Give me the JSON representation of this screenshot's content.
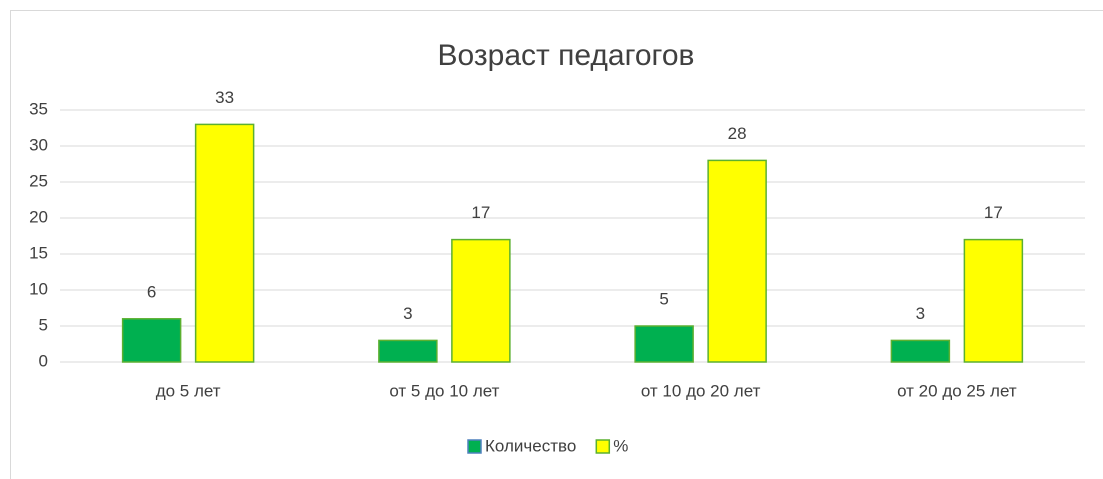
{
  "chart_data": {
    "type": "bar",
    "title": "Возраст педагогов",
    "categories": [
      "до 5 лет",
      "от 5 до 10 лет",
      "от 10 до 20  лет",
      "от 20 до 25 лет"
    ],
    "series": [
      {
        "name": "Количество",
        "color": "#00b050",
        "values": [
          6,
          3,
          5,
          3
        ]
      },
      {
        "name": "%",
        "color": "#ffff00",
        "values": [
          33,
          17,
          28,
          17
        ]
      }
    ],
    "ylim": [
      0,
      35
    ],
    "yticks": [
      0,
      5,
      10,
      15,
      20,
      25,
      30,
      35
    ],
    "grid": true,
    "legend": "bottom"
  }
}
